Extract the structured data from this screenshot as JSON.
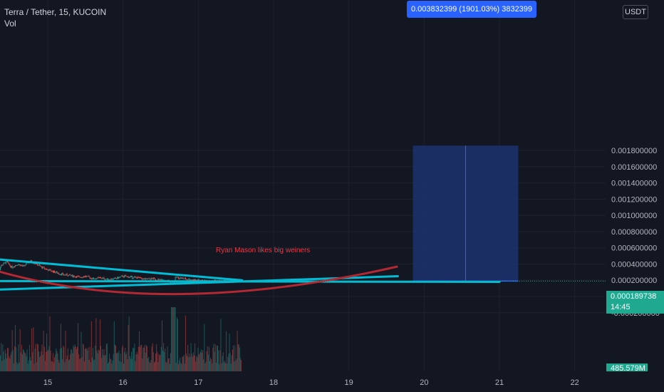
{
  "header": {
    "symbol_line": "Terra / Tether, 15, KUCOIN",
    "volume_label": "Vol"
  },
  "currency_label": "USDT",
  "measure_label": "0.003832399 (1901.03%) 3832399",
  "annotation_text": "Ryan Mason likes big weiners",
  "last_price": "0.000189738",
  "countdown": "14:45",
  "volume_last": "485.579M",
  "colors": {
    "background": "#131722",
    "grid": "#1e222d",
    "candle_up": "#26a69a",
    "candle_down": "#ef5350",
    "trendline": "#00bcd4",
    "curve": "#b22833",
    "measure_fill": "#1c3270",
    "measure_accent": "#2962ff",
    "annotation": "#f23645"
  },
  "chart_data": {
    "type": "candlestick",
    "x_axis": {
      "tick_labels": [
        "15",
        "16",
        "17",
        "18",
        "19",
        "20",
        "21",
        "22"
      ]
    },
    "y_axis": {
      "tick_labels": [
        "0.001800000",
        "0.001600000",
        "0.001400000",
        "0.001200000",
        "0.001000000",
        "0.000800000",
        "0.000600000",
        "0.000400000",
        "0.000200000",
        "-0.000000000",
        "-0.000200000"
      ],
      "tick_values": [
        0.0018,
        0.0016,
        0.0014,
        0.0012,
        0.001,
        0.0008,
        0.0006,
        0.0004,
        0.0002,
        0.0,
        -0.0002
      ],
      "range": [
        -0.00021,
        0.00186
      ]
    },
    "price_series_path": [
      [
        14.32,
        0.00023
      ],
      [
        14.38,
        0.00038
      ],
      [
        14.45,
        0.00043
      ],
      [
        14.52,
        0.00036
      ],
      [
        14.6,
        0.0004
      ],
      [
        14.68,
        0.00037
      ],
      [
        14.76,
        0.00044
      ],
      [
        14.84,
        0.00041
      ],
      [
        14.92,
        0.00036
      ],
      [
        15.0,
        0.00033
      ],
      [
        15.1,
        0.0003
      ],
      [
        15.2,
        0.00027
      ],
      [
        15.3,
        0.00026
      ],
      [
        15.4,
        0.00024
      ],
      [
        15.5,
        0.00025
      ],
      [
        15.6,
        0.00022
      ],
      [
        15.7,
        0.00023
      ],
      [
        15.8,
        0.00021
      ],
      [
        15.9,
        0.00022
      ],
      [
        16.0,
        0.00025
      ],
      [
        16.1,
        0.00024
      ],
      [
        16.2,
        0.00023
      ],
      [
        16.3,
        0.00021
      ],
      [
        16.4,
        0.00022
      ],
      [
        16.5,
        0.0002
      ],
      [
        16.6,
        0.00019
      ],
      [
        16.67,
        0.00016
      ],
      [
        16.7,
        0.00024
      ],
      [
        16.8,
        0.00022
      ],
      [
        16.9,
        0.00021
      ],
      [
        17.0,
        0.0002
      ],
      [
        17.1,
        0.00019
      ],
      [
        17.2,
        0.0002
      ],
      [
        17.3,
        0.00019
      ],
      [
        17.4,
        0.00019
      ],
      [
        17.58,
        0.00019
      ]
    ],
    "trendlines": [
      {
        "name": "",
        "from": [
          14.32,
          0.00046
        ],
        "to": [
          17.58,
          0.0002
        ]
      },
      {
        "name": "",
        "from": [
          14.2,
          8e-05
        ],
        "to": [
          19.65,
          0.00025
        ]
      },
      {
        "name": "",
        "from": [
          14.2,
          0.00019
        ],
        "to": [
          21.0,
          0.00018
        ]
      }
    ],
    "curve": {
      "from": [
        14.2,
        0.00035
      ],
      "via": [
        16.7,
        3e-05
      ],
      "to": [
        19.65,
        0.00037
      ]
    },
    "last_price_value": 0.000189738,
    "measure_box": {
      "x_from": 19.85,
      "x_to": 21.25,
      "y_from": 0.00019,
      "y_to": 0.00186
    }
  }
}
